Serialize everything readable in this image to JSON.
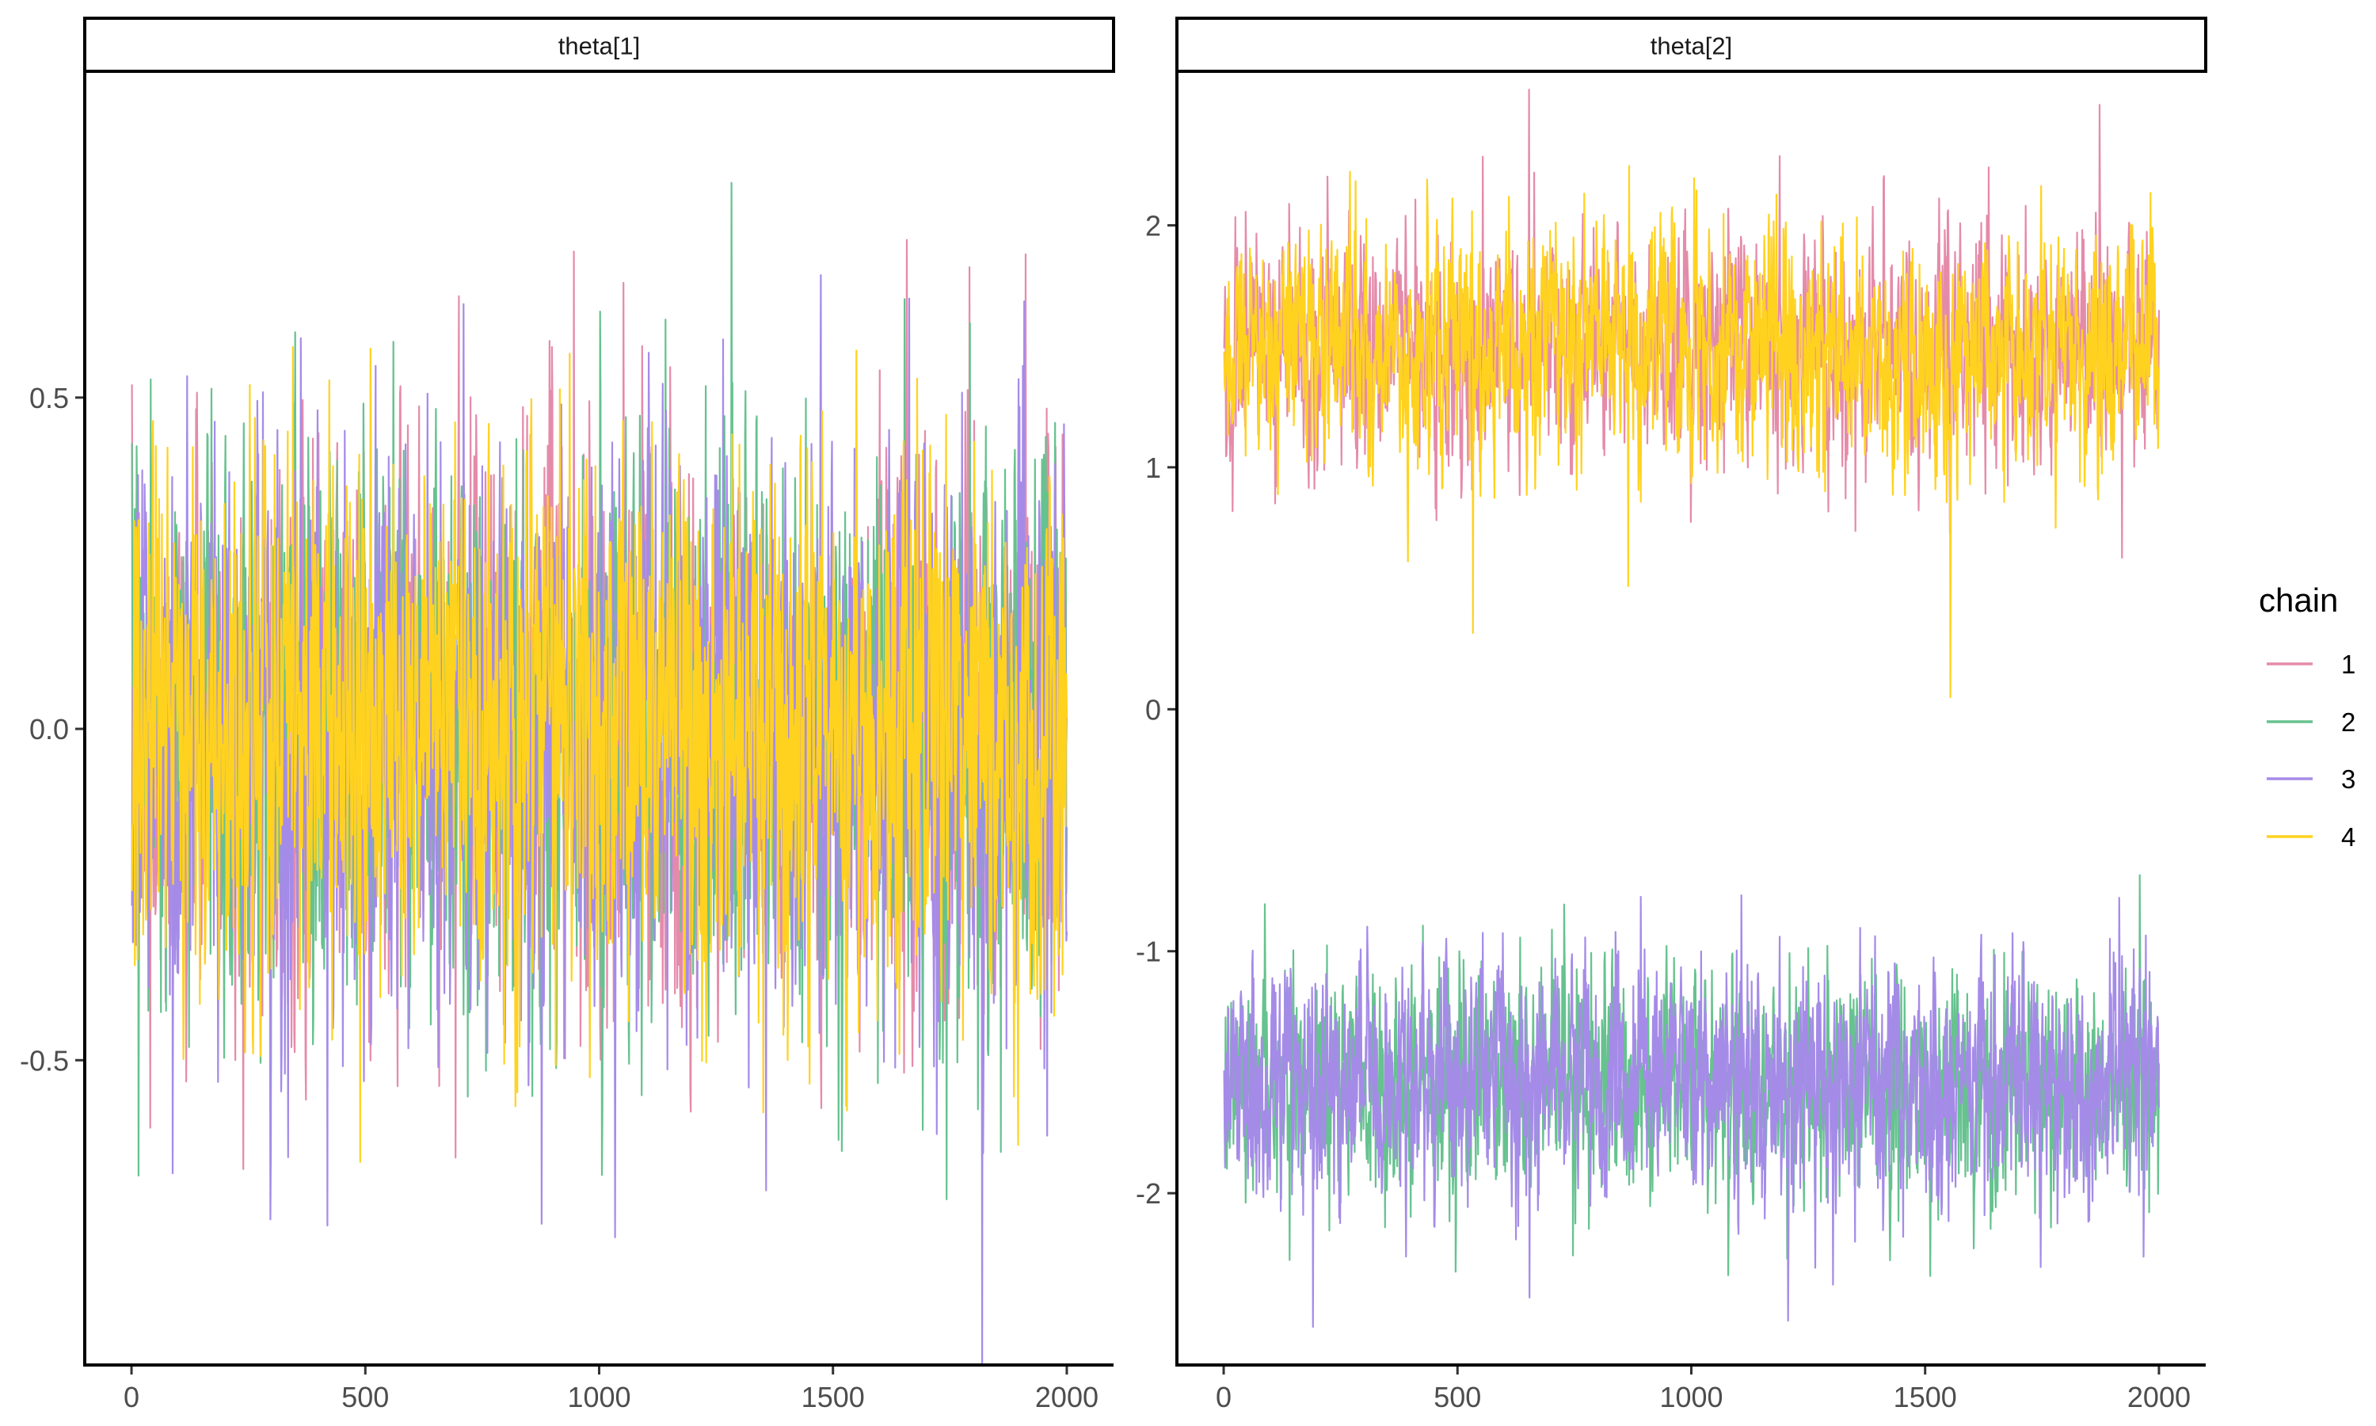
{
  "chart_data": {
    "type": "line",
    "title": "",
    "xlabel": "",
    "ylabel": "",
    "grid": false,
    "legend": {
      "title": "chain",
      "placement": "right",
      "entries": [
        "1",
        "2",
        "3",
        "4"
      ]
    },
    "colors": {
      "1": "#E58BAA",
      "2": "#66C28F",
      "3": "#A58BE8",
      "4": "#FFD21F"
    },
    "iterations": 2000,
    "panels": [
      {
        "strip": "theta[1]",
        "xlim": [
          -100,
          2100
        ],
        "ylim": [
          -0.96,
          0.99
        ],
        "xticks": [
          0,
          500,
          1000,
          1500,
          2000
        ],
        "xtick_labels": [
          "0",
          "500",
          "1000",
          "1500",
          "2000"
        ],
        "yticks": [
          -0.5,
          0.0,
          0.5
        ],
        "ytick_labels": [
          "-0.5",
          "0.0",
          "0.5"
        ],
        "series": [
          {
            "name": "1",
            "mean": 0.0,
            "sd": 0.2
          },
          {
            "name": "2",
            "mean": 0.0,
            "sd": 0.2
          },
          {
            "name": "3",
            "mean": 0.0,
            "sd": 0.2
          },
          {
            "name": "4",
            "mean": 0.0,
            "sd": 0.2
          }
        ]
      },
      {
        "strip": "theta[2]",
        "xlim": [
          -100,
          2100
        ],
        "ylim": [
          -2.71,
          2.63
        ],
        "xticks": [
          0,
          500,
          1000,
          1500,
          2000
        ],
        "xtick_labels": [
          "0",
          "500",
          "1000",
          "1500",
          "2000"
        ],
        "yticks": [
          -2,
          -1,
          0,
          1,
          2
        ],
        "ytick_labels": [
          "-2",
          "-1",
          "0",
          "1",
          "2"
        ],
        "series": [
          {
            "name": "1",
            "mean": 1.5,
            "sd": 0.23
          },
          {
            "name": "2",
            "mean": -1.55,
            "sd": 0.23
          },
          {
            "name": "3",
            "mean": -1.55,
            "sd": 0.23
          },
          {
            "name": "4",
            "mean": 1.5,
            "sd": 0.23
          }
        ]
      }
    ]
  }
}
